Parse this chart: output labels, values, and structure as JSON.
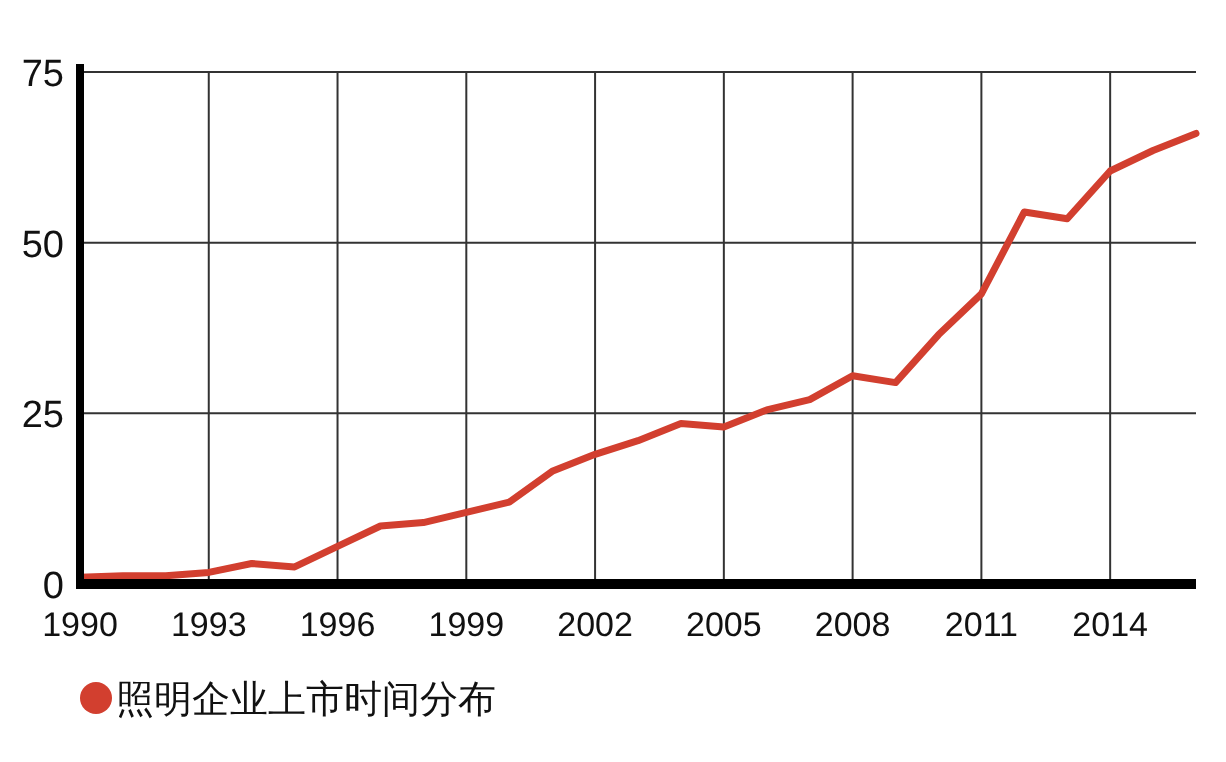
{
  "chart_data": {
    "type": "line",
    "x": [
      1990,
      1991,
      1992,
      1993,
      1994,
      1995,
      1996,
      1997,
      1998,
      1999,
      2000,
      2001,
      2002,
      2003,
      2004,
      2005,
      2006,
      2007,
      2008,
      2009,
      2010,
      2011,
      2012,
      2013,
      2014,
      2015,
      2016
    ],
    "series": [
      {
        "name": "照明企业上市时间分布",
        "color": "#d23f2f",
        "values": [
          1,
          1.2,
          1.2,
          1.7,
          3,
          2.5,
          5.5,
          8.5,
          9,
          10.5,
          12,
          16.5,
          19,
          21,
          23.5,
          23,
          25.5,
          27,
          30.5,
          29.5,
          36.5,
          42.5,
          54.5,
          53.5,
          60.5,
          63.5,
          66
        ]
      }
    ],
    "xlim": [
      1990,
      2016
    ],
    "xticks": [
      1990,
      1993,
      1996,
      1999,
      2002,
      2005,
      2008,
      2011,
      2014
    ],
    "ylim": [
      0,
      75
    ],
    "yticks": [
      0,
      25,
      50,
      75
    ],
    "grid": true,
    "legend": "bottom left",
    "marker": "none",
    "line_style": "solid"
  }
}
